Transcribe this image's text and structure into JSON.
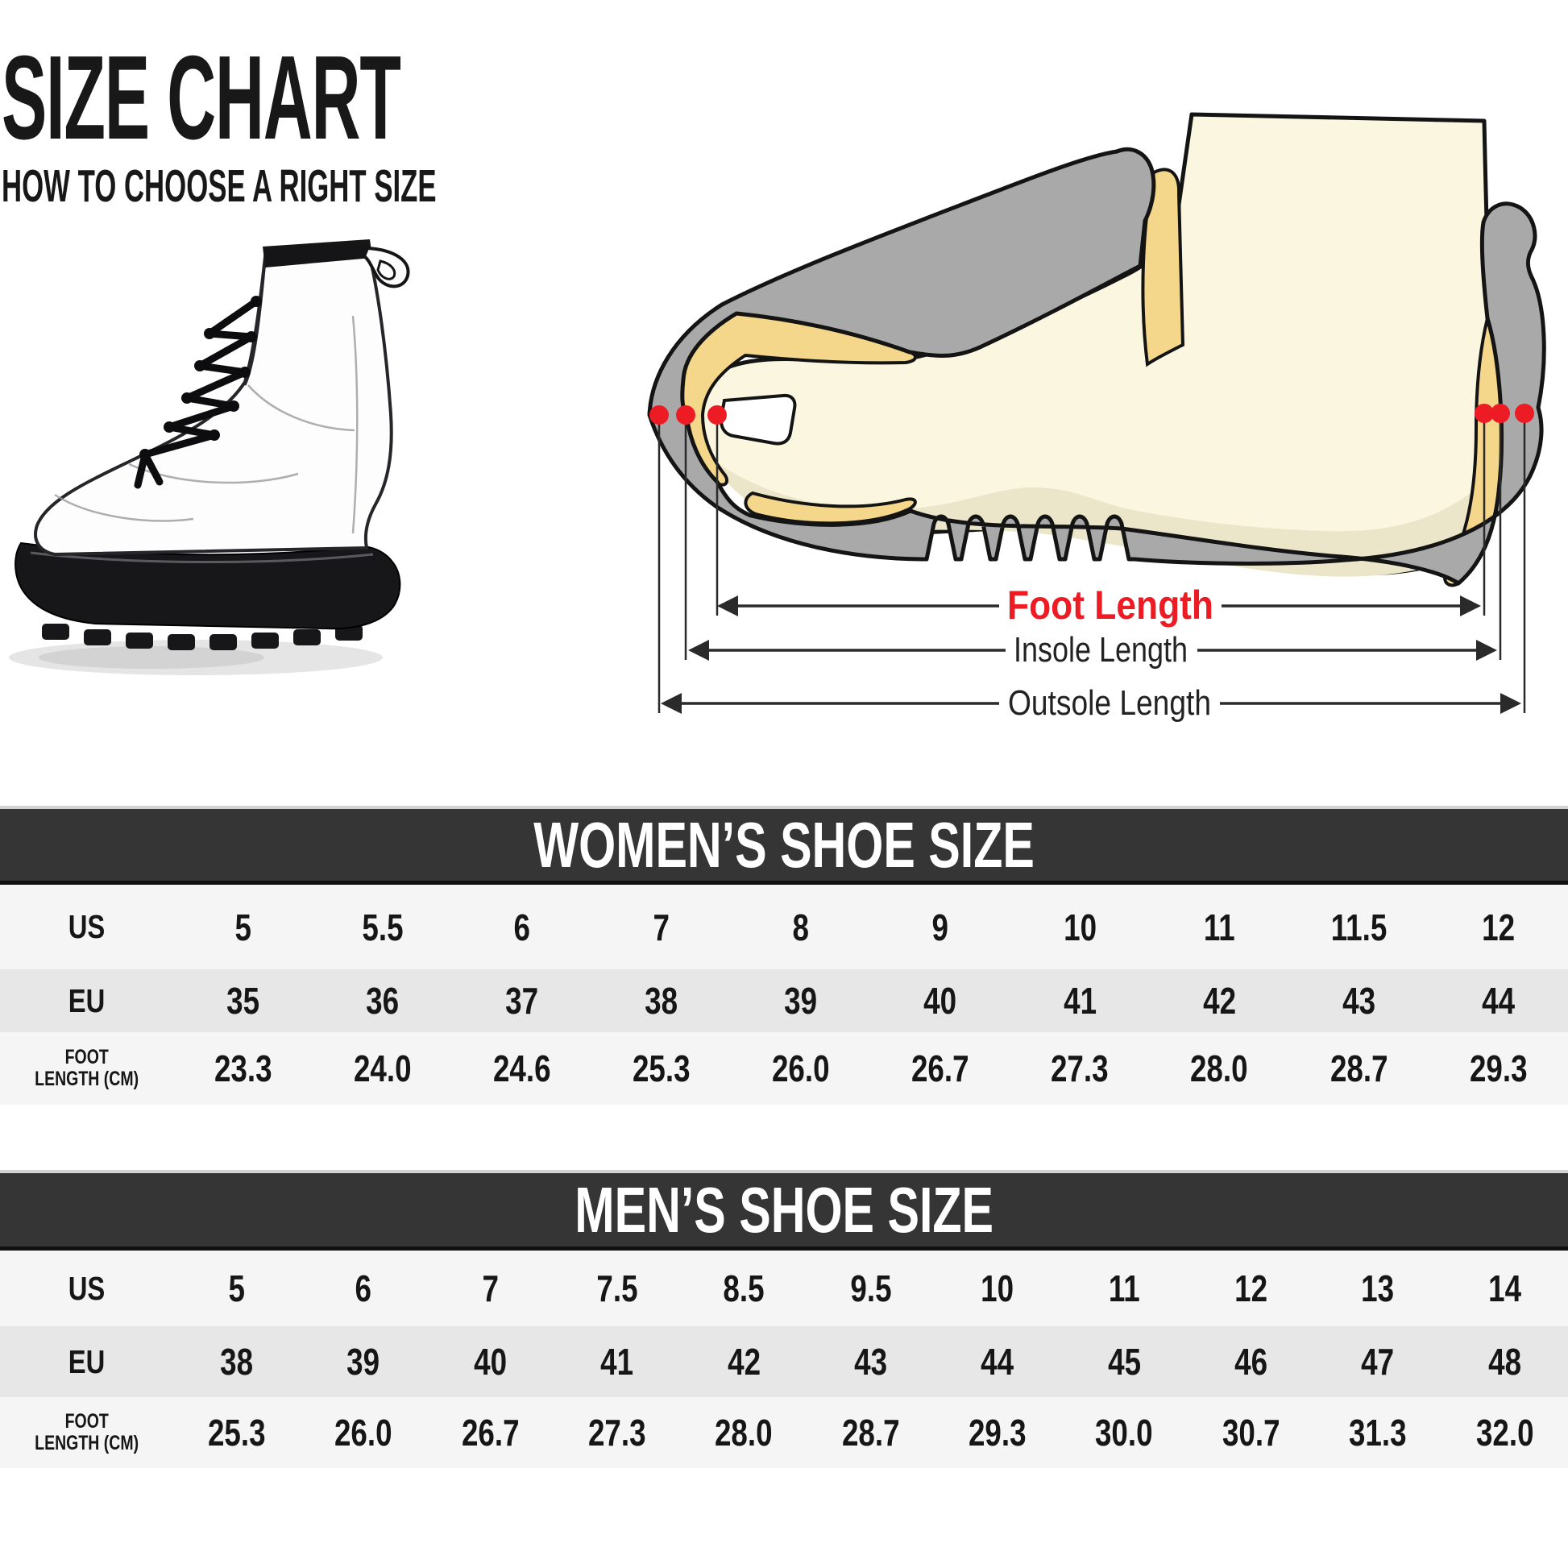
{
  "title_block": {
    "title": "SIZE CHART",
    "subtitle": "HOW TO CHOOSE A RIGHT SIZE"
  },
  "diagram": {
    "foot_length_label": "Foot Length",
    "insole_length_label": "Insole Length",
    "outsole_length_label": "Outsole Length"
  },
  "colors": {
    "accent_red": "#ed1c24",
    "shoe_gray": "#a9a9a9",
    "lining_yellow": "#f4d78a",
    "foot_cream": "#faf6e0",
    "foot_shade": "#ebe6ca",
    "outline_dark": "#141414",
    "table_header_bg": "#353535",
    "table_row_light": "#f5f5f6",
    "table_row_dark": "#e7e7e8",
    "text_dark": "#161616",
    "boot_body": "#fdfdfd",
    "boot_sole": "#17171a"
  },
  "tables": {
    "womens": {
      "title": "WOMEN’S SHOE SIZE",
      "rows": [
        {
          "label": "US",
          "values": [
            "5",
            "5.5",
            "6",
            "7",
            "8",
            "9",
            "10",
            "11",
            "11.5",
            "12"
          ]
        },
        {
          "label": "EU",
          "values": [
            "35",
            "36",
            "37",
            "38",
            "39",
            "40",
            "41",
            "42",
            "43",
            "44"
          ]
        },
        {
          "label_lines": [
            "FOOT",
            "LENGTH (CM)"
          ],
          "values": [
            "23.3",
            "24.0",
            "24.6",
            "25.3",
            "26.0",
            "26.7",
            "27.3",
            "28.0",
            "28.7",
            "29.3"
          ]
        }
      ]
    },
    "mens": {
      "title": "MEN’S SHOE SIZE",
      "rows": [
        {
          "label": "US",
          "values": [
            "5",
            "6",
            "7",
            "7.5",
            "8.5",
            "9.5",
            "10",
            "11",
            "12",
            "13",
            "14"
          ]
        },
        {
          "label": "EU",
          "values": [
            "38",
            "39",
            "40",
            "41",
            "42",
            "43",
            "44",
            "45",
            "46",
            "47",
            "48"
          ]
        },
        {
          "label_lines": [
            "FOOT",
            "LENGTH (CM)"
          ],
          "values": [
            "25.3",
            "26.0",
            "26.7",
            "27.3",
            "28.0",
            "28.7",
            "29.3",
            "30.0",
            "30.7",
            "31.3",
            "32.0"
          ]
        }
      ]
    }
  }
}
